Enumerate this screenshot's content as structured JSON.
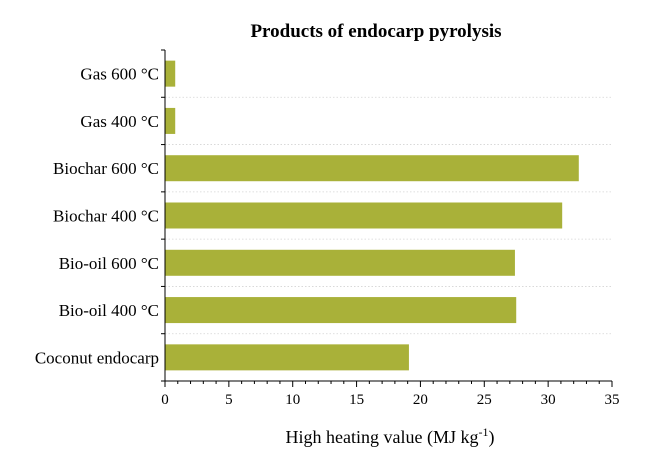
{
  "colors": {
    "bar": "#a9b139"
  },
  "chart_data": {
    "type": "bar",
    "orientation": "horizontal",
    "title": "Products of endocarp pyrolysis",
    "xlabel": "High heating value (MJ kg",
    "xlabel_sup": "-1",
    "xlabel_close": ")",
    "ylabel": "",
    "categories": [
      "Gas 600 °C",
      "Gas 400 °C",
      "Biochar 600 °C",
      "Biochar 400 °C",
      "Bio-oil 600 °C",
      "Bio-oil 400 °C",
      "Coconut endocarp"
    ],
    "values": [
      0.8,
      0.8,
      32.4,
      31.1,
      27.4,
      27.5,
      19.1
    ],
    "xlim": [
      0,
      35
    ],
    "xticks": [
      0,
      5,
      10,
      15,
      20,
      25,
      30,
      35
    ],
    "grid": "horizontal-dotted"
  }
}
